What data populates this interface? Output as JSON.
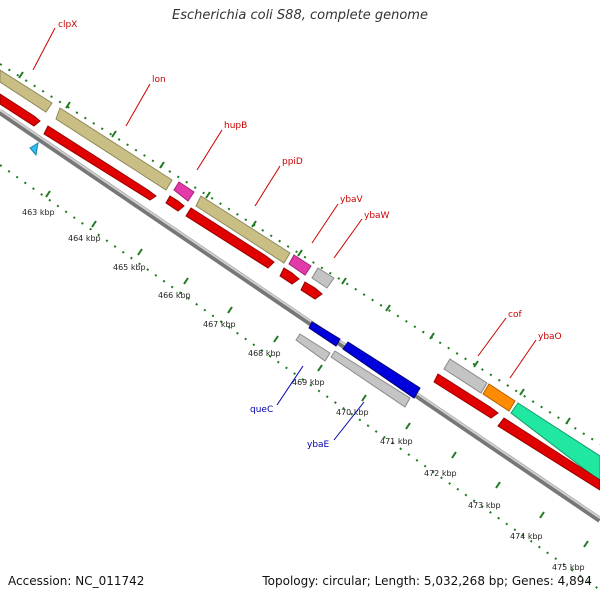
{
  "title": "Escherichia coli S88, complete genome",
  "footer": {
    "accession": "Accession: NC_011742",
    "summary": "Topology: circular; Length: 5,032,268 bp; Genes: 4,894"
  },
  "colors": {
    "background": "#ffffff",
    "backbone": "#8a8a8a",
    "tick": "#1f7a1f",
    "forward_label": "#cc0000",
    "reverse_label": "#0000aa",
    "cds": "#e00000",
    "gene_tan": "#c9bf85",
    "gene_pink": "#e23aa8",
    "gene_gray": "#c4c4c4",
    "gene_orange": "#ff8c00",
    "gene_green": "#20e8a0",
    "gene_blue": "#0000dd",
    "small_feature": "#33bbee"
  },
  "kbp_labels": [
    "463 kbp",
    "464 kbp",
    "465 kbp",
    "466 kbp",
    "467 kbp",
    "468 kbp",
    "469 kbp",
    "470 kbp",
    "471 kbp",
    "472 kbp",
    "473 kbp",
    "474 kbp",
    "475 kbp"
  ],
  "gene_labels": {
    "forward": [
      "clpX",
      "lon",
      "hupB",
      "ppiD",
      "ybaV",
      "ybaW",
      "cof",
      "ybaO"
    ],
    "reverse": [
      "queC",
      "ybaE"
    ]
  }
}
